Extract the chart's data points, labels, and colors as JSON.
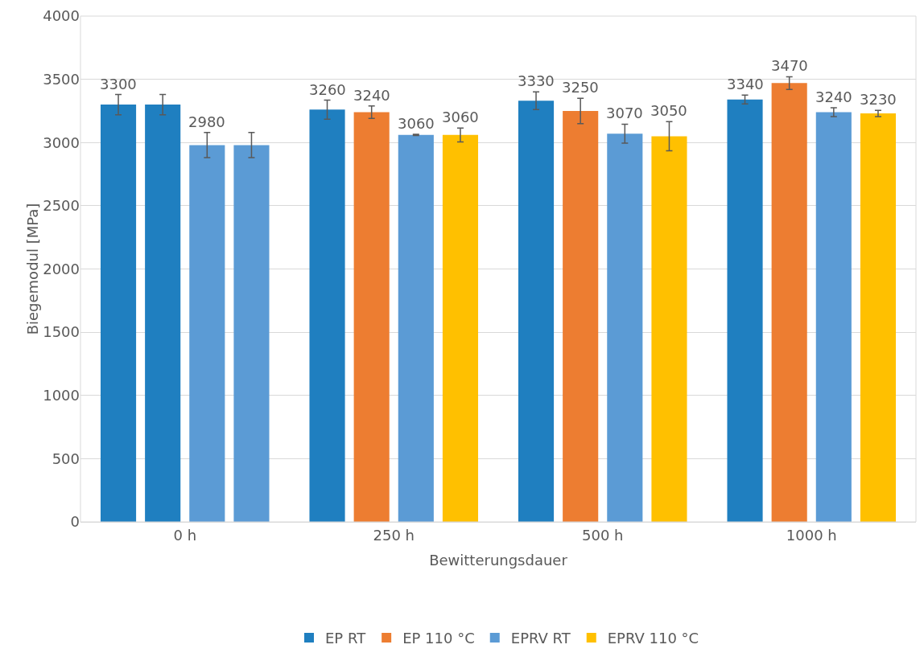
{
  "chart_data": {
    "type": "bar",
    "xlabel": "Bewitterungsdauer",
    "ylabel": "Biegemodul [MPa]",
    "categories": [
      "0 h",
      "250 h",
      "500 h",
      "1000 h"
    ],
    "series": [
      {
        "name": "EP RT",
        "color": "#1f7fc0",
        "values": [
          3300,
          3260,
          3330,
          3340
        ],
        "errors": [
          80,
          75,
          70,
          35
        ],
        "value_labels": [
          "3300",
          "3260",
          "3330",
          "3340"
        ]
      },
      {
        "name": "EP 110 °C",
        "color": "#ed7d31",
        "colors": [
          "#1f7fc0",
          "#ed7d31",
          "#ed7d31",
          "#ed7d31"
        ],
        "values": [
          3300,
          3240,
          3250,
          3470
        ],
        "errors": [
          80,
          50,
          100,
          50
        ],
        "value_labels": [
          null,
          "3240",
          "3250",
          "3470"
        ]
      },
      {
        "name": "EPRV RT",
        "color": "#5b9bd5",
        "values": [
          2980,
          3060,
          3070,
          3240
        ],
        "errors": [
          100,
          5,
          75,
          35
        ],
        "value_labels": [
          "2980",
          "3060",
          "3070",
          "3240"
        ]
      },
      {
        "name": "EPRV 110 °C",
        "color": "#ffc000",
        "colors": [
          "#5b9bd5",
          "#ffc000",
          "#ffc000",
          "#ffc000"
        ],
        "values": [
          2980,
          3060,
          3050,
          3230
        ],
        "errors": [
          100,
          55,
          115,
          25
        ],
        "value_labels": [
          null,
          "3060",
          "3050",
          "3230"
        ]
      }
    ],
    "ylim": [
      0,
      4000
    ],
    "yticks": [
      0,
      500,
      1000,
      1500,
      2000,
      2500,
      3000,
      3500,
      4000
    ],
    "grid": "y",
    "legend": "bottom"
  }
}
